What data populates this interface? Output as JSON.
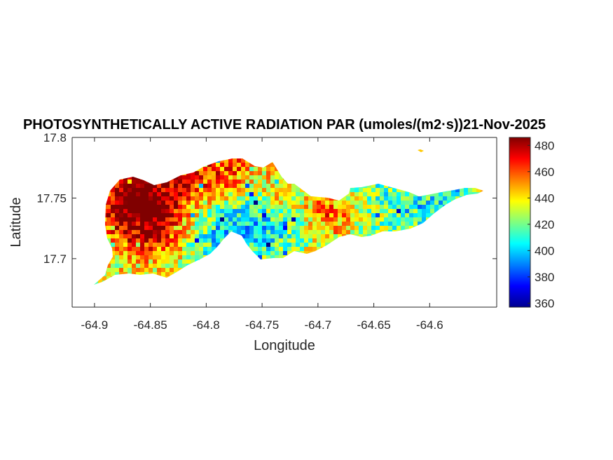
{
  "chart_data": {
    "type": "heatmap",
    "title": "PHOTOSYNTHETICALLY ACTIVE RADIATION PAR (umoles/(m2·s))21-Nov-2025",
    "xlabel": "Longitude",
    "ylabel": "Latitude",
    "xlim": [
      -64.92,
      -64.54
    ],
    "ylim": [
      17.66,
      17.8
    ],
    "x_ticks": [
      -64.9,
      -64.85,
      -64.8,
      -64.75,
      -64.7,
      -64.65,
      -64.6
    ],
    "x_tick_labels": [
      "-64.9",
      "-64.85",
      "-64.8",
      "-64.75",
      "-64.7",
      "-64.65",
      "-64.6"
    ],
    "y_ticks": [
      17.7,
      17.75,
      17.8
    ],
    "y_tick_labels": [
      "17.7",
      "17.75",
      "17.8"
    ],
    "colorbar": {
      "colormap": "jet",
      "range": [
        357,
        486
      ],
      "ticks": [
        360,
        380,
        400,
        420,
        440,
        460,
        480
      ],
      "tick_labels": [
        "360",
        "380",
        "400",
        "420",
        "440",
        "460",
        "480"
      ],
      "colors": [
        "#00008f",
        "#0000ff",
        "#0080ff",
        "#00ffff",
        "#80ff80",
        "#ffff00",
        "#ff8000",
        "#ff0000",
        "#800000"
      ]
    },
    "grid": false
  }
}
